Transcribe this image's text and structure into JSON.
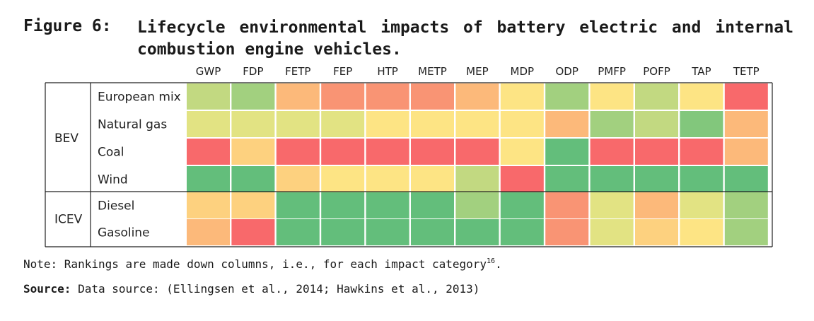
{
  "figure": {
    "label": "Figure 6:",
    "title": "Lifecycle environmental impacts of battery electric and internal combustion engine vehicles."
  },
  "chart_data": {
    "type": "heatmap",
    "title": "Lifecycle environmental impacts of battery electric and internal combustion engine vehicles.",
    "columns": [
      "GWP",
      "FDP",
      "FETP",
      "FEP",
      "HTP",
      "METP",
      "MEP",
      "MDP",
      "ODP",
      "PMFP",
      "POFP",
      "TAP",
      "TETP"
    ],
    "groups": [
      {
        "name": "BEV",
        "rows": [
          "European mix",
          "Natural gas",
          "Coal",
          "Wind"
        ]
      },
      {
        "name": "ICEV",
        "rows": [
          "Diesel",
          "Gasoline"
        ]
      }
    ],
    "value_scale": "color rank: 1 = best (green) to 10 = worst (red)",
    "values": [
      [
        4,
        3,
        8,
        9,
        9,
        9,
        8,
        6,
        3,
        6,
        4,
        6,
        10
      ],
      [
        5,
        5,
        5,
        5,
        6,
        6,
        6,
        6,
        8,
        3,
        4,
        2,
        8
      ],
      [
        10,
        7,
        10,
        10,
        10,
        10,
        10,
        6,
        1,
        10,
        10,
        10,
        8
      ],
      [
        1,
        1,
        7,
        6,
        6,
        6,
        4,
        10,
        1,
        1,
        1,
        1,
        1
      ],
      [
        7,
        7,
        1,
        1,
        1,
        1,
        3,
        1,
        9,
        5,
        8,
        5,
        3
      ],
      [
        8,
        10,
        1,
        1,
        1,
        1,
        1,
        1,
        9,
        5,
        7,
        6,
        3
      ]
    ],
    "palette": [
      "#63be7b",
      "#82c77c",
      "#a2d07f",
      "#c2d981",
      "#e2e383",
      "#fde484",
      "#fdd17f",
      "#fcb97a",
      "#f99474",
      "#f8696b"
    ]
  },
  "note": {
    "text": "Note: Rankings are made down columns, i.e., for each impact category",
    "sup": "16",
    "end": "."
  },
  "source": {
    "label": "Source:",
    "text": " Data source: (Ellingsen et al., 2014; Hawkins et al., 2013)"
  }
}
